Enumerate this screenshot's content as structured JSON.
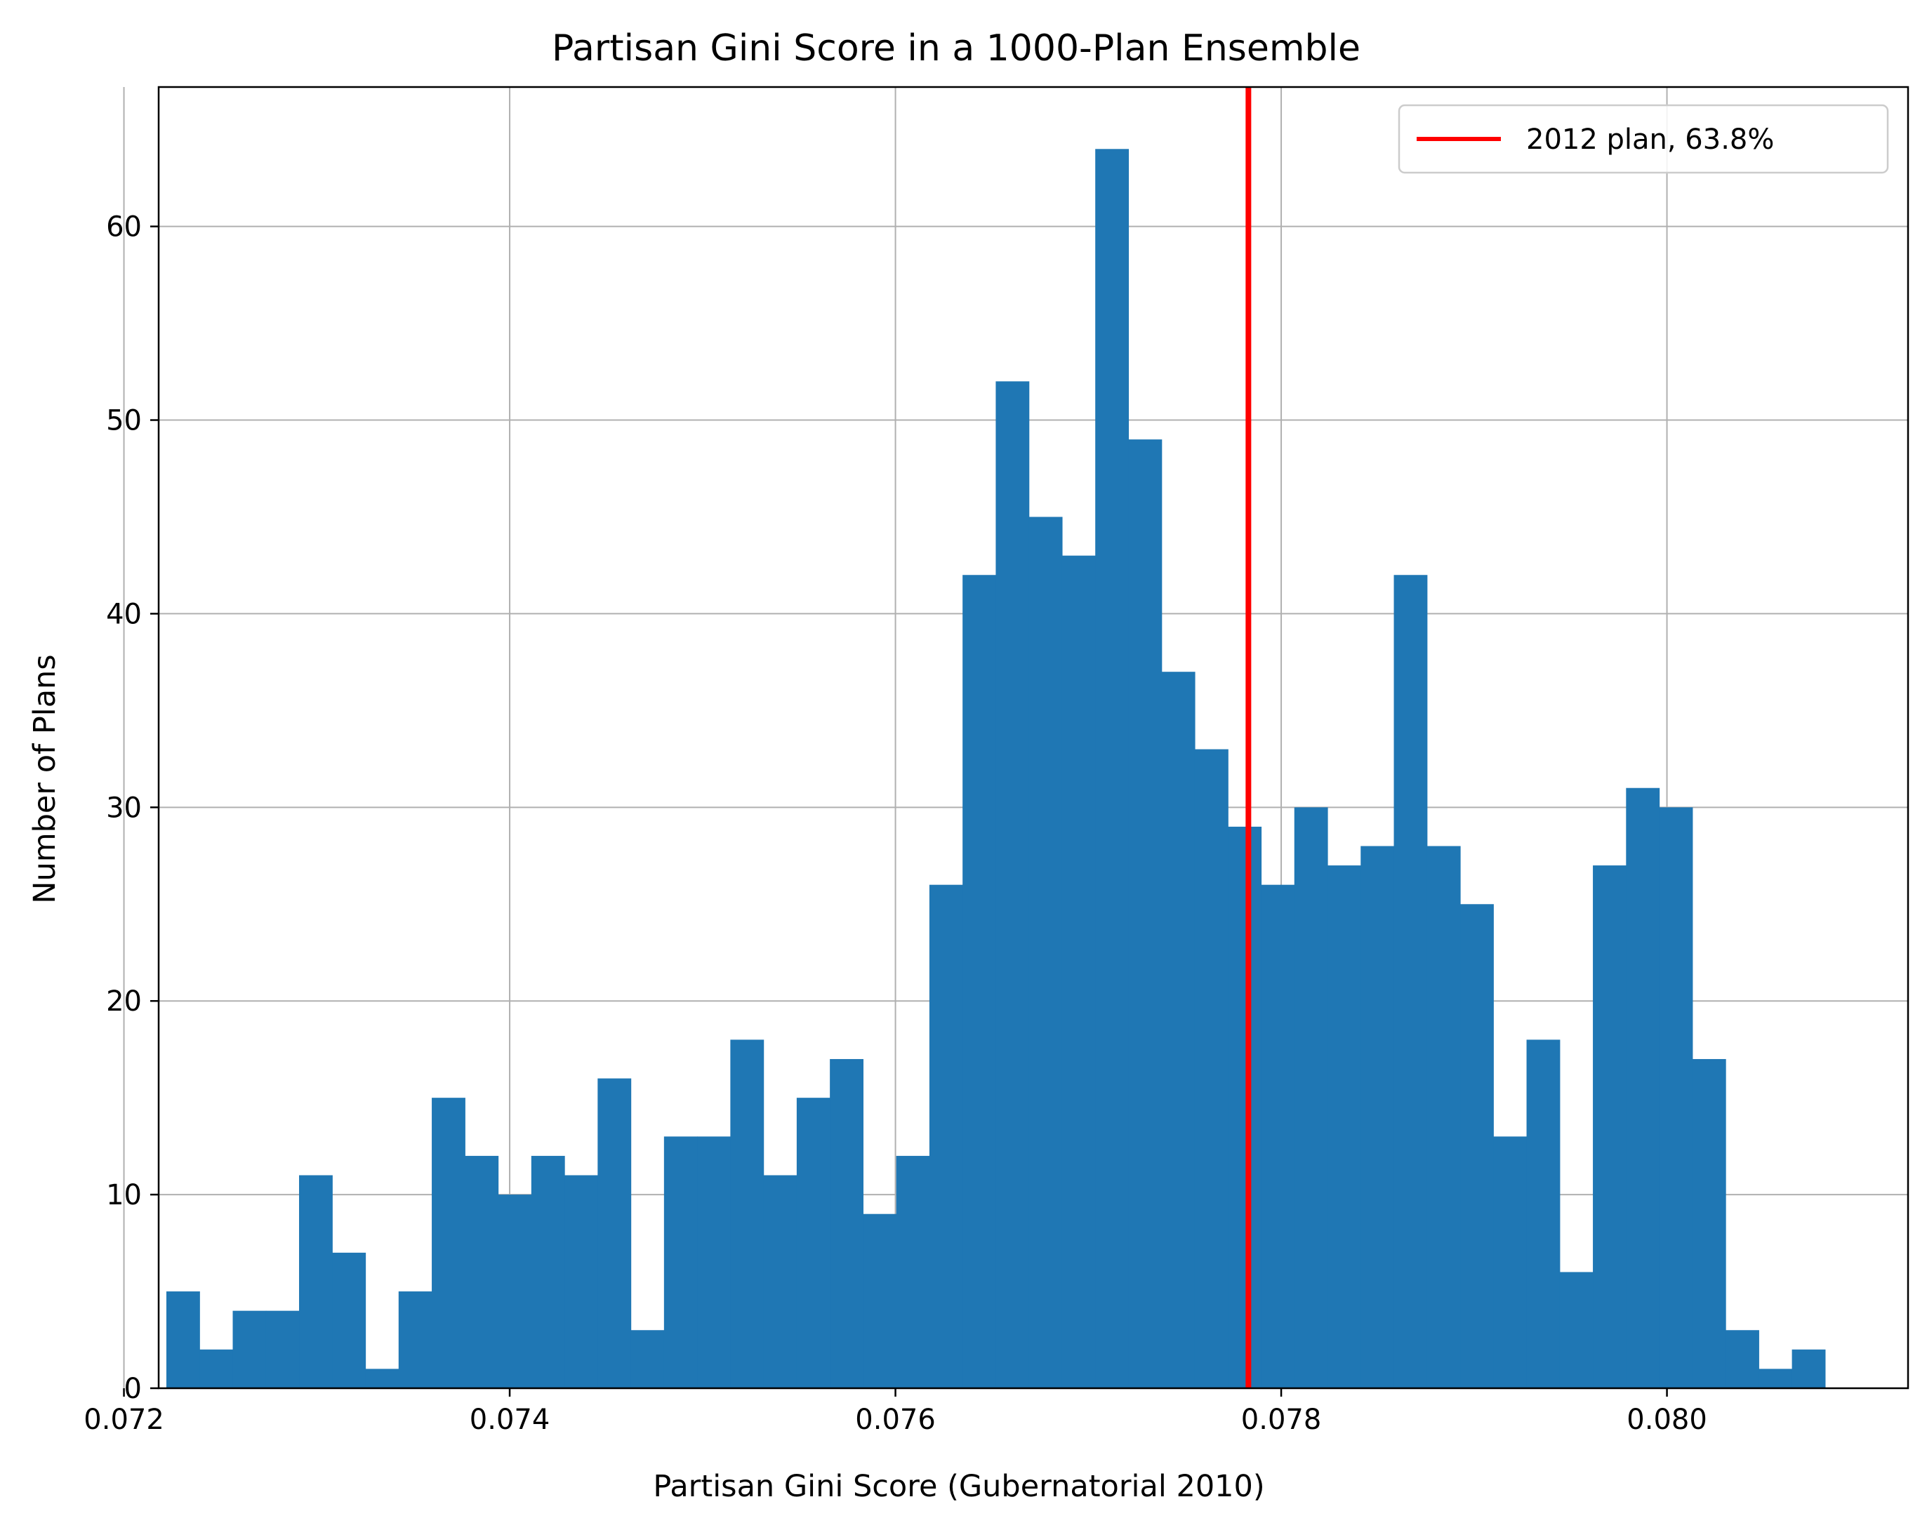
{
  "chart_data": {
    "type": "bar",
    "title": "Partisan Gini Score in a 1000-Plan Ensemble",
    "xlabel": "Partisan Gini Score (Gubernatorial 2010)",
    "ylabel": "Number of Plans",
    "xlim": [
      0.07218,
      0.08125
    ],
    "ylim": [
      0,
      67.2
    ],
    "xticks": [
      0.072,
      0.074,
      0.076,
      0.078,
      0.08
    ],
    "xtick_labels": [
      "0.072",
      "0.074",
      "0.076",
      "0.078",
      "0.080"
    ],
    "yticks": [
      0,
      10,
      20,
      30,
      40,
      50,
      60
    ],
    "ytick_labels": [
      "0",
      "10",
      "20",
      "30",
      "40",
      "50",
      "60"
    ],
    "grid": true,
    "bin_start": 0.07222,
    "bin_width": 0.000172,
    "values": [
      5,
      2,
      4,
      4,
      11,
      7,
      1,
      5,
      15,
      12,
      10,
      12,
      11,
      16,
      3,
      13,
      13,
      18,
      11,
      15,
      17,
      9,
      12,
      26,
      42,
      52,
      45,
      43,
      64,
      49,
      37,
      33,
      29,
      26,
      30,
      27,
      28,
      42,
      28,
      25,
      13,
      18,
      6,
      27,
      31,
      30,
      17,
      3,
      1,
      2
    ],
    "bar_color": "#1f77b4",
    "reference_line": {
      "x": 0.07783,
      "label": "2012 plan, 63.8%",
      "color": "#ff0000"
    },
    "legend": {
      "placement": "top-right",
      "entries": [
        "2012 plan, 63.8%"
      ]
    }
  }
}
